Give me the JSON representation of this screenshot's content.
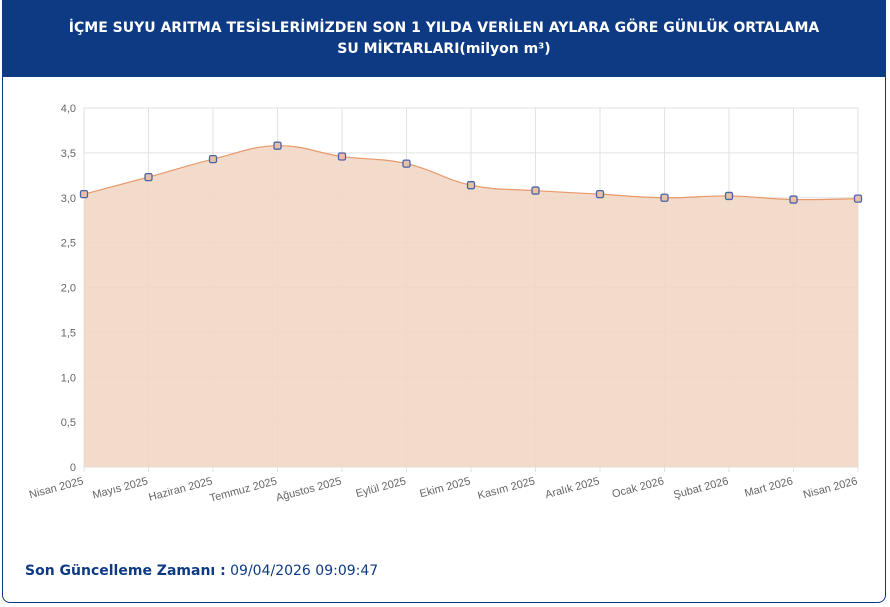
{
  "header": {
    "title": "İÇME SUYU ARITMA TESİSLERİMİZDEN SON 1 YILDA VERİLEN AYLARA GÖRE GÜNLÜK ORTALAMA SU MİKTARLARI(milyon m³)"
  },
  "footer": {
    "label": "Son Güncelleme Zamanı :",
    "value": "09/04/2026 09:09:47"
  },
  "chart_data": {
    "type": "area",
    "categories": [
      "Nisan 2025",
      "Mayıs 2025",
      "Haziran 2025",
      "Temmuz 2025",
      "Ağustos 2025",
      "Eylül 2025",
      "Ekim 2025",
      "Kasım 2025",
      "Aralık 2025",
      "Ocak 2026",
      "Şubat 2026",
      "Mart 2026",
      "Nisan 2026"
    ],
    "values": [
      3.04,
      3.23,
      3.43,
      3.58,
      3.46,
      3.38,
      3.14,
      3.08,
      3.04,
      3.0,
      3.02,
      2.98,
      2.99
    ],
    "ylim": [
      0,
      4
    ],
    "yticks": [
      "0",
      "0,5",
      "1,0",
      "1,5",
      "2,0",
      "2,5",
      "3,0",
      "3,5",
      "4,0"
    ],
    "grid": true,
    "colors": {
      "fill": "#f2d7c5",
      "line": "#e8996a",
      "point": "#4a64a8",
      "header": "#0e3a84"
    }
  }
}
